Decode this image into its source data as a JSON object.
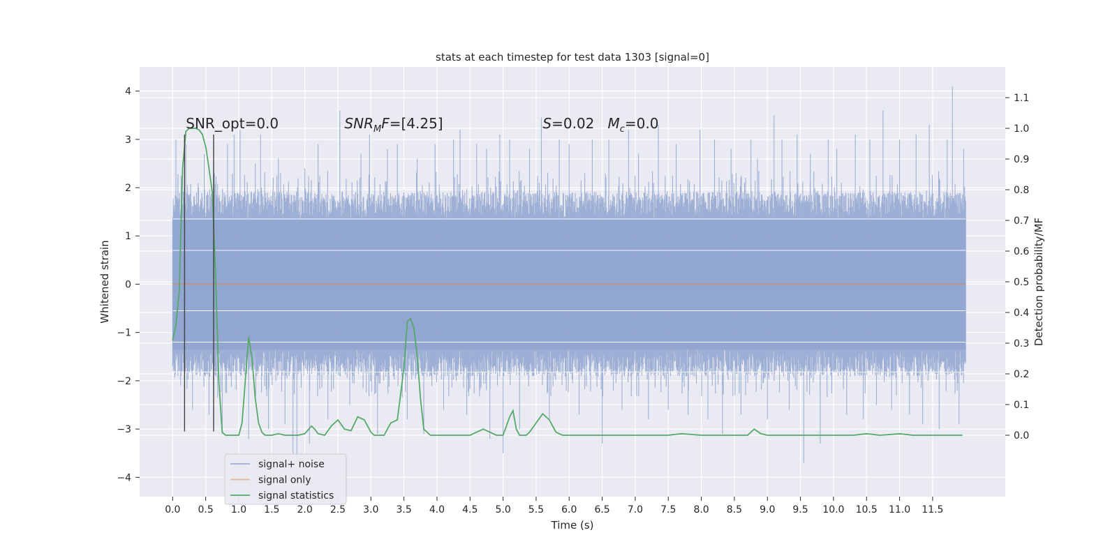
{
  "chart_data": {
    "type": "line",
    "title": "stats at each timestep for test data 1303 [signal=0]",
    "xlabel": "Time (s)",
    "ylabel_left": "Whitened strain",
    "ylabel_right": "Detection probability/MF",
    "x_ticks": [
      "0.0",
      "0.5",
      "1.0",
      "1.5",
      "2.0",
      "2.5",
      "3.0",
      "3.5",
      "4.0",
      "4.5",
      "5.0",
      "5.5",
      "6.0",
      "6.5",
      "7.0",
      "7.5",
      "8.0",
      "8.5",
      "9.0",
      "9.5",
      "10.0",
      "10.5",
      "11.0",
      "11.5"
    ],
    "y_left_ticks": [
      "4",
      "3",
      "2",
      "1",
      "0",
      "−1",
      "−2",
      "−3",
      "−4"
    ],
    "y_right_ticks": [
      "1.1",
      "1.0",
      "0.9",
      "0.8",
      "0.7",
      "0.6",
      "0.5",
      "0.4",
      "0.3",
      "0.2",
      "0.1",
      "0.0"
    ],
    "xlim": [
      -0.5,
      12.6
    ],
    "ylim_left": [
      -4.4,
      4.5
    ],
    "ylim_right": [
      -0.2,
      1.2
    ],
    "grid": true,
    "legend_position": "bottom-left",
    "annotations": [
      {
        "parts": [
          {
            "text": "SNR_opt=0.0",
            "style": "normal"
          }
        ],
        "x": 0.2,
        "y": 1.0
      },
      {
        "parts": [
          {
            "text": "SNR",
            "style": "italic"
          },
          {
            "text": "M",
            "style": "italic-sub"
          },
          {
            "text": "F",
            "style": "italic"
          },
          {
            "text": "=[4.25]",
            "style": "normal"
          }
        ],
        "x": 2.6,
        "y": 1.0
      },
      {
        "parts": [
          {
            "text": "S",
            "style": "italic"
          },
          {
            "text": "=0.02   ",
            "style": "normal"
          },
          {
            "text": "M",
            "style": "italic"
          },
          {
            "text": "c",
            "style": "italic-sub"
          },
          {
            "text": "=0.0",
            "style": "normal"
          }
        ],
        "x": 5.6,
        "y": 1.0
      }
    ],
    "markers": [
      {
        "x": 0.18,
        "y_top": 3.1,
        "y_bottom": -3.05
      },
      {
        "x": 0.62,
        "y_top": 3.1,
        "y_bottom": -3.05
      }
    ],
    "series": [
      {
        "name": "signal+ noise",
        "axis": "left",
        "color": "#8fa5cf",
        "opacity": 0.85,
        "style": "noise",
        "x_start": 0.0,
        "x_end": 12.0,
        "band": 1.35,
        "dense": 1.95,
        "peaks": [
          [
            0.05,
            3.0
          ],
          [
            0.12,
            -2.1
          ],
          [
            0.2,
            2.9
          ],
          [
            0.3,
            -2.6
          ],
          [
            0.48,
            2.7
          ],
          [
            0.55,
            -2.7
          ],
          [
            0.75,
            -3.1
          ],
          [
            0.83,
            2.9
          ],
          [
            0.93,
            3.1
          ],
          [
            1.02,
            3.2
          ],
          [
            1.15,
            -3.2
          ],
          [
            1.25,
            2.5
          ],
          [
            1.33,
            3.1
          ],
          [
            1.45,
            -3.0
          ],
          [
            1.6,
            2.6
          ],
          [
            1.7,
            -2.9
          ],
          [
            1.82,
            -3.5
          ],
          [
            1.88,
            -3.6
          ],
          [
            2.0,
            2.4
          ],
          [
            2.07,
            -3.3
          ],
          [
            2.2,
            2.9
          ],
          [
            2.35,
            -2.8
          ],
          [
            2.53,
            3.6
          ],
          [
            2.68,
            -2.5
          ],
          [
            2.85,
            2.7
          ],
          [
            2.98,
            3.1
          ],
          [
            3.1,
            -3.1
          ],
          [
            3.25,
            2.8
          ],
          [
            3.4,
            2.9
          ],
          [
            3.55,
            -2.8
          ],
          [
            3.7,
            2.6
          ],
          [
            3.8,
            -3.1
          ],
          [
            3.97,
            2.9
          ],
          [
            4.1,
            -2.6
          ],
          [
            4.25,
            3.0
          ],
          [
            4.35,
            3.2
          ],
          [
            4.45,
            -2.7
          ],
          [
            4.6,
            2.9
          ],
          [
            4.75,
            2.8
          ],
          [
            4.8,
            -3.2
          ],
          [
            4.95,
            3.1
          ],
          [
            5.0,
            -3.5
          ],
          [
            5.1,
            3.0
          ],
          [
            5.25,
            -3.0
          ],
          [
            5.4,
            2.8
          ],
          [
            5.58,
            3.45
          ],
          [
            5.7,
            -2.8
          ],
          [
            5.85,
            3.0
          ],
          [
            6.0,
            2.9
          ],
          [
            6.15,
            -2.7
          ],
          [
            6.35,
            3.0
          ],
          [
            6.5,
            -3.3
          ],
          [
            6.6,
            3.0
          ],
          [
            6.8,
            -2.6
          ],
          [
            6.9,
            3.2
          ],
          [
            7.05,
            2.7
          ],
          [
            7.2,
            -2.8
          ],
          [
            7.35,
            3.3
          ],
          [
            7.5,
            -2.6
          ],
          [
            7.62,
            2.9
          ],
          [
            7.8,
            -2.7
          ],
          [
            7.98,
            3.2
          ],
          [
            8.1,
            -2.8
          ],
          [
            8.2,
            3.0
          ],
          [
            8.32,
            -3.1
          ],
          [
            8.45,
            2.8
          ],
          [
            8.6,
            -2.7
          ],
          [
            8.75,
            3.0
          ],
          [
            8.85,
            2.6
          ],
          [
            9.0,
            -2.8
          ],
          [
            9.1,
            3.5
          ],
          [
            9.22,
            3.0
          ],
          [
            9.33,
            -2.6
          ],
          [
            9.45,
            3.1
          ],
          [
            9.55,
            -3.7
          ],
          [
            9.65,
            2.7
          ],
          [
            9.8,
            -3.3
          ],
          [
            9.92,
            3.0
          ],
          [
            10.05,
            2.8
          ],
          [
            10.2,
            -2.7
          ],
          [
            10.33,
            3.1
          ],
          [
            10.45,
            -2.8
          ],
          [
            10.55,
            3.0
          ],
          [
            10.65,
            -2.5
          ],
          [
            10.75,
            3.6
          ],
          [
            10.88,
            -2.6
          ],
          [
            11.0,
            3.0
          ],
          [
            11.15,
            -2.7
          ],
          [
            11.25,
            3.1
          ],
          [
            11.35,
            -2.9
          ],
          [
            11.45,
            3.3
          ],
          [
            11.6,
            -3.0
          ],
          [
            11.72,
            3.0
          ],
          [
            11.8,
            4.1
          ],
          [
            11.9,
            -2.9
          ],
          [
            11.97,
            2.8
          ]
        ]
      },
      {
        "name": "signal only",
        "axis": "left",
        "color": "#dd8452",
        "opacity": 0.55,
        "style": "line",
        "x": [
          0.0,
          12.0
        ],
        "y": [
          0.0,
          0.0
        ]
      },
      {
        "name": "signal statistics",
        "axis": "right",
        "color": "#55a868",
        "opacity": 1.0,
        "style": "line",
        "x": [
          0.0,
          0.05,
          0.1,
          0.15,
          0.2,
          0.25,
          0.3,
          0.35,
          0.4,
          0.45,
          0.5,
          0.55,
          0.6,
          0.65,
          0.7,
          0.75,
          0.8,
          0.85,
          0.9,
          1.0,
          1.05,
          1.1,
          1.15,
          1.2,
          1.25,
          1.3,
          1.35,
          1.4,
          1.45,
          1.5,
          1.6,
          1.7,
          1.8,
          1.9,
          2.0,
          2.1,
          2.15,
          2.2,
          2.3,
          2.4,
          2.5,
          2.6,
          2.7,
          2.8,
          2.9,
          3.0,
          3.05,
          3.1,
          3.2,
          3.3,
          3.4,
          3.5,
          3.55,
          3.6,
          3.65,
          3.7,
          3.75,
          3.8,
          3.85,
          3.9,
          3.95,
          4.0,
          4.05,
          4.1,
          4.2,
          4.5,
          4.7,
          4.8,
          4.9,
          5.0,
          5.1,
          5.15,
          5.2,
          5.25,
          5.3,
          5.35,
          5.4,
          5.5,
          5.6,
          5.7,
          5.75,
          5.8,
          5.85,
          5.9,
          6.0,
          6.2,
          6.5,
          7.0,
          7.5,
          7.7,
          8.0,
          8.5,
          8.7,
          8.8,
          8.9,
          9.0,
          9.5,
          10.0,
          10.3,
          10.5,
          10.7,
          10.9,
          11.0,
          11.2,
          11.5,
          11.95
        ],
        "y": [
          0.31,
          0.36,
          0.47,
          0.87,
          0.99,
          1.0,
          1.0,
          1.0,
          0.995,
          0.98,
          0.94,
          0.87,
          0.79,
          0.52,
          0.17,
          0.01,
          0.0,
          0.0,
          0.0,
          0.0,
          0.04,
          0.18,
          0.32,
          0.25,
          0.12,
          0.04,
          0.01,
          0.0,
          0.0,
          0.0,
          0.005,
          0.0,
          0.0,
          0.0,
          0.005,
          0.03,
          0.02,
          0.005,
          0.0,
          0.03,
          0.05,
          0.02,
          0.015,
          0.06,
          0.05,
          0.01,
          0.0,
          0.0,
          0.0,
          0.04,
          0.05,
          0.22,
          0.37,
          0.38,
          0.35,
          0.26,
          0.12,
          0.02,
          0.01,
          0.0,
          0.0,
          0.0,
          0.0,
          0.0,
          0.0,
          0.0,
          0.02,
          0.01,
          0.0,
          0.0,
          0.06,
          0.08,
          0.02,
          0.0,
          0.0,
          0.0,
          0.01,
          0.04,
          0.07,
          0.05,
          0.03,
          0.01,
          0.005,
          0.0,
          0.0,
          0.0,
          0.0,
          0.0,
          0.0,
          0.005,
          0.0,
          0.0,
          0.0,
          0.02,
          0.005,
          0.0,
          0.0,
          0.0,
          0.0,
          0.005,
          0.0,
          0.003,
          0.005,
          0.0,
          0.0,
          0.0
        ]
      }
    ]
  }
}
